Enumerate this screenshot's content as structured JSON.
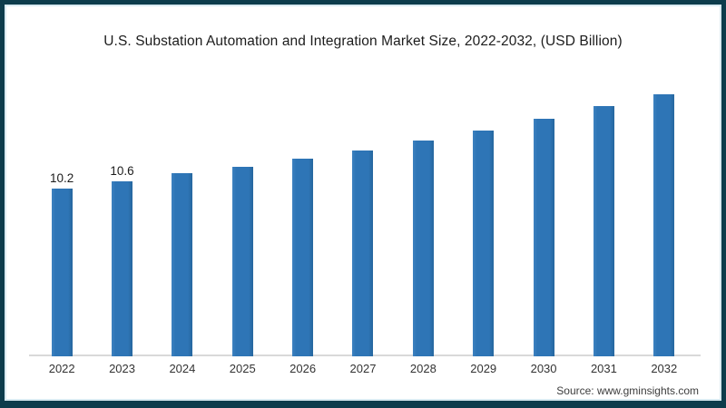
{
  "page": {
    "frame_border_color": "#0d3c4c",
    "background_color": "#ffffff"
  },
  "chart_data": {
    "type": "bar",
    "title": "U.S. Substation Automation and Integration Market Size, 2022-2032, (USD Billion)",
    "categories": [
      "2022",
      "2023",
      "2024",
      "2025",
      "2026",
      "2027",
      "2028",
      "2029",
      "2030",
      "2031",
      "2032"
    ],
    "values": [
      10.2,
      10.6,
      11.1,
      11.5,
      12.0,
      12.5,
      13.1,
      13.7,
      14.4,
      15.2,
      15.9
    ],
    "data_labels": [
      "10.2",
      "10.6",
      "",
      "",
      "",
      "",
      "",
      "",
      "",
      "",
      ""
    ],
    "xlabel": "",
    "ylabel": "",
    "ylim": [
      0,
      16.5
    ],
    "grid": false,
    "legend": false,
    "bar_color": "#2e75b6",
    "axis_line_color": "#d9d9d9",
    "label_color": "#1c1c1c"
  },
  "footer": {
    "source_label": "Source: www.gminsights.com"
  }
}
